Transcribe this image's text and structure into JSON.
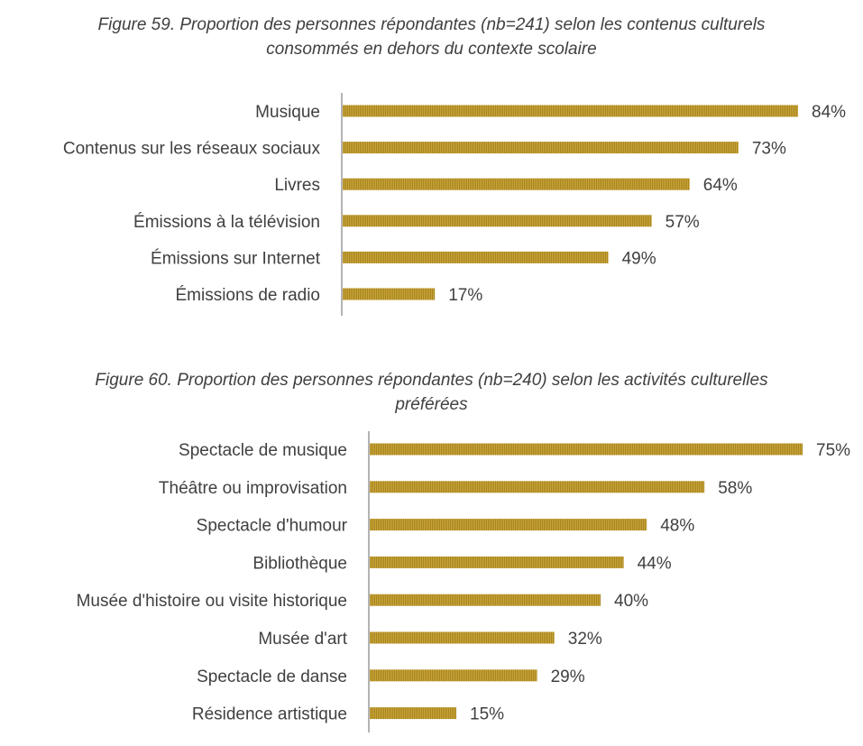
{
  "chart_data": [
    {
      "type": "bar",
      "orientation": "horizontal",
      "title_line1": "Figure 59. Proportion des personnes répondantes (nb=241) selon les contenus culturels",
      "title_line2": "consommés en dehors du contexte scolaire",
      "categories": [
        "Musique",
        "Contenus sur les réseaux sociaux",
        "Livres",
        "Émissions à la télévision",
        "Émissions sur Internet",
        "Émissions de radio"
      ],
      "values": [
        84,
        73,
        64,
        57,
        49,
        17
      ],
      "labels": [
        "84%",
        "73%",
        "64%",
        "57%",
        "49%",
        "17%"
      ],
      "bar_color": "#bf9b30",
      "grid": false,
      "legend": "none"
    },
    {
      "type": "bar",
      "orientation": "horizontal",
      "title_line1": "Figure 60. Proportion des personnes répondantes (nb=240) selon les activités culturelles",
      "title_line2": "préférées",
      "categories": [
        "Spectacle de musique",
        "Théâtre ou improvisation",
        "Spectacle d'humour",
        "Bibliothèque",
        "Musée d'histoire ou visite historique",
        "Musée d'art",
        "Spectacle de danse",
        "Résidence artistique"
      ],
      "values": [
        75,
        58,
        48,
        44,
        40,
        32,
        29,
        15
      ],
      "labels": [
        "75%",
        "58%",
        "48%",
        "44%",
        "40%",
        "32%",
        "29%",
        "15%"
      ],
      "bar_color": "#bf9b30",
      "grid": false,
      "legend": "none"
    }
  ]
}
